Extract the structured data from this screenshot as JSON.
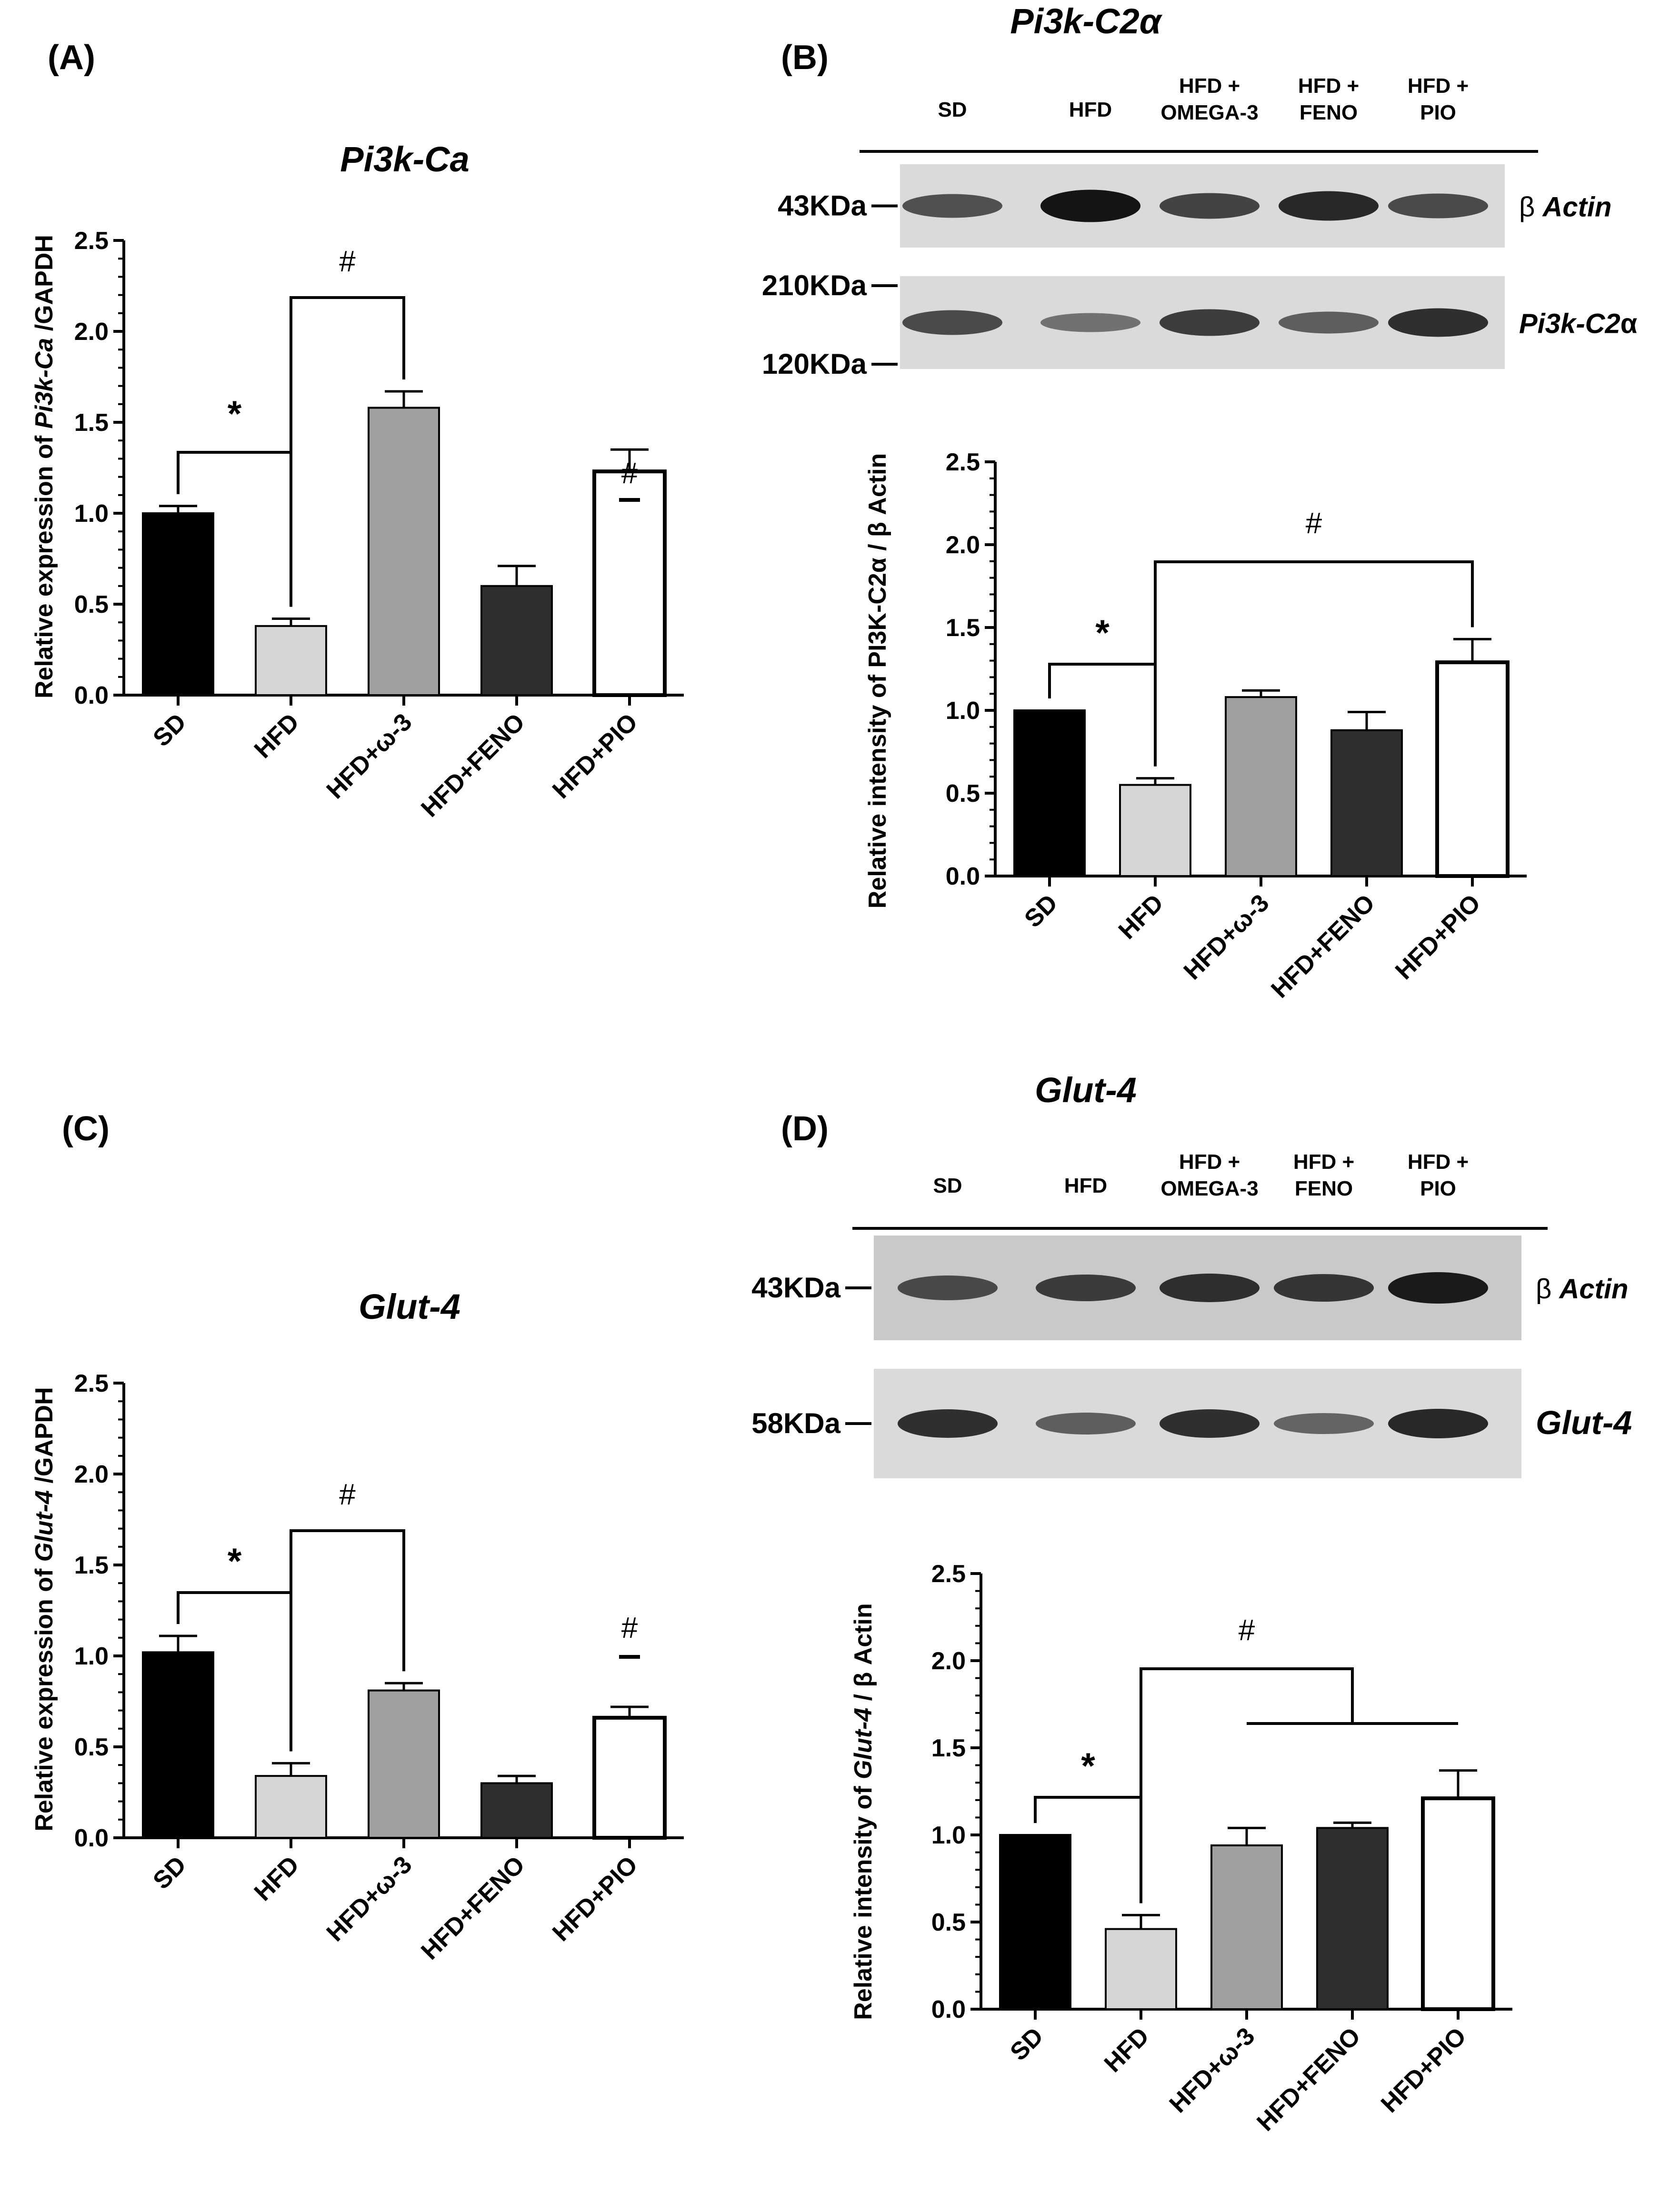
{
  "panels": [
    {
      "id": "A",
      "label": "(A)",
      "chart_data": {
        "type": "bar",
        "title": "Pi3k-Ca",
        "ylabel": "Relative expression of  Pi3k-Ca /GAPDH",
        "ylabel_prefix": "Relative expression of ",
        "ylabel_italic": "Pi3k-Ca",
        "ylabel_suffix": " /GAPDH",
        "ylim": [
          0,
          2.5
        ],
        "yticks": [
          "0.0",
          "0.5",
          "1.0",
          "1.5",
          "2.0",
          "2.5"
        ],
        "categories": [
          "SD",
          "HFD",
          "HFD+ω-3",
          "HFD+FENO",
          "HFD+PIO"
        ],
        "values": [
          1.0,
          0.38,
          1.58,
          0.6,
          1.23
        ],
        "errors": [
          0.04,
          0.04,
          0.09,
          0.11,
          0.12
        ],
        "colors": [
          "#000000",
          "#d6d6d6",
          "#a0a0a0",
          "#2e2e2e",
          "#ffffff"
        ],
        "significance": [
          {
            "symbol": "*",
            "from": 0,
            "to": 1
          },
          {
            "symbol": "#",
            "from": 1,
            "to": 2
          },
          {
            "symbol": "#",
            "over": 4
          }
        ]
      }
    },
    {
      "id": "B",
      "label": "(B)",
      "blot": {
        "title": "Pi3k-C2α",
        "lanes": [
          "SD",
          "HFD",
          "HFD +\nOMEGA-3",
          "HFD +\nFENO",
          "HFD +\nPIO"
        ],
        "rows": [
          {
            "marker": "43KDa",
            "protein": "β Actin",
            "intensity": [
              0.55,
              1.0,
              0.65,
              0.85,
              0.6
            ]
          },
          {
            "marker_top": "210KDa",
            "marker_bottom": "120KDa",
            "protein": "Pi3k-C2α",
            "intensity": [
              0.6,
              0.3,
              0.7,
              0.45,
              0.8
            ]
          }
        ]
      },
      "chart_data": {
        "type": "bar",
        "ylabel": "Relative intensity of PI3K-C2α / β Actin",
        "ylim": [
          0,
          2.5
        ],
        "yticks": [
          "0.0",
          "0.5",
          "1.0",
          "1.5",
          "2.0",
          "2.5"
        ],
        "categories": [
          "SD",
          "HFD",
          "HFD+ω-3",
          "HFD+FENO",
          "HFD+PIO"
        ],
        "values": [
          1.0,
          0.55,
          1.08,
          0.88,
          1.29
        ],
        "errors": [
          0.0,
          0.04,
          0.04,
          0.11,
          0.14
        ],
        "colors": [
          "#000000",
          "#d6d6d6",
          "#a0a0a0",
          "#2e2e2e",
          "#ffffff"
        ],
        "significance": [
          {
            "symbol": "*",
            "from": 0,
            "to": 1
          },
          {
            "symbol": "#",
            "from": 1,
            "to": 4
          }
        ]
      }
    },
    {
      "id": "C",
      "label": "(C)",
      "chart_data": {
        "type": "bar",
        "title": "Glut-4",
        "ylabel": "Relative expression of  Glut-4  /GAPDH",
        "ylabel_prefix": "Relative expression of  ",
        "ylabel_italic": "Glut-4",
        "ylabel_suffix": "  /GAPDH",
        "ylim": [
          0,
          2.5
        ],
        "yticks": [
          "0.0",
          "0.5",
          "1.0",
          "1.5",
          "2.0",
          "2.5"
        ],
        "categories": [
          "SD",
          "HFD",
          "HFD+ω-3",
          "HFD+FENO",
          "HFD+PIO"
        ],
        "values": [
          1.02,
          0.34,
          0.81,
          0.3,
          0.66
        ],
        "errors": [
          0.09,
          0.07,
          0.04,
          0.04,
          0.06
        ],
        "colors": [
          "#000000",
          "#d6d6d6",
          "#a0a0a0",
          "#2e2e2e",
          "#ffffff"
        ],
        "significance": [
          {
            "symbol": "*",
            "from": 0,
            "to": 1
          },
          {
            "symbol": "#",
            "from": 1,
            "to": 2
          },
          {
            "symbol": "#",
            "over": 4
          }
        ]
      }
    },
    {
      "id": "D",
      "label": "(D)",
      "blot": {
        "title": "Glut-4",
        "lanes": [
          "SD",
          "HFD",
          "HFD +\nOMEGA-3",
          "HFD +\nFENO",
          "HFD +\nPIO"
        ],
        "rows": [
          {
            "marker": "43KDa",
            "protein": "β Actin",
            "intensity": [
              0.6,
              0.7,
              0.8,
              0.75,
              0.95
            ]
          },
          {
            "marker": "58KDa",
            "protein": "Glut-4",
            "intensity": [
              0.8,
              0.45,
              0.8,
              0.4,
              0.85
            ]
          }
        ]
      },
      "chart_data": {
        "type": "bar",
        "ylabel": "Relative intensity of  Glut-4  / β Actin",
        "ylabel_prefix": "Relative intensity of  ",
        "ylabel_italic": "Glut-4",
        "ylabel_suffix": "  / β Actin",
        "ylim": [
          0,
          2.5
        ],
        "yticks": [
          "0.0",
          "0.5",
          "1.0",
          "1.5",
          "2.0",
          "2.5"
        ],
        "categories": [
          "SD",
          "HFD",
          "HFD+ω-3",
          "HFD+FENO",
          "HFD+PIO"
        ],
        "values": [
          1.0,
          0.46,
          0.94,
          1.04,
          1.21
        ],
        "errors": [
          0.0,
          0.08,
          0.1,
          0.03,
          0.16
        ],
        "colors": [
          "#000000",
          "#d6d6d6",
          "#a0a0a0",
          "#2e2e2e",
          "#ffffff"
        ],
        "significance": [
          {
            "symbol": "*",
            "from": 0,
            "to": 1
          },
          {
            "symbol": "#",
            "from": 1,
            "group": [
              2,
              3,
              4
            ]
          }
        ]
      }
    }
  ]
}
